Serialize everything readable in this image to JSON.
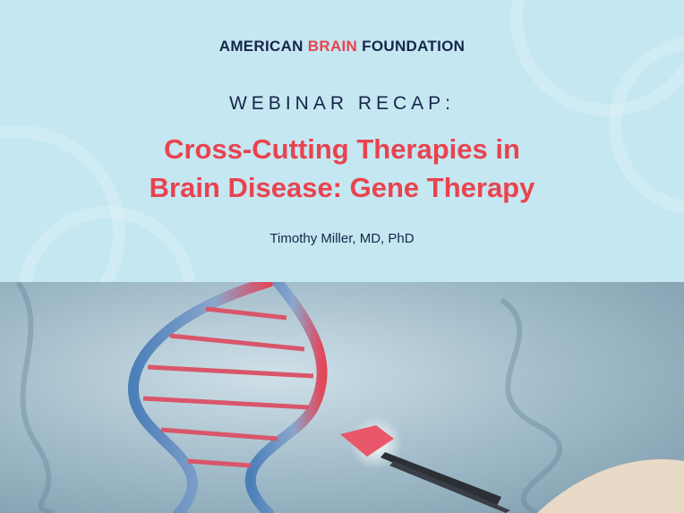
{
  "header": {
    "org_part1": "AMERICAN",
    "org_part2": "BRAIN",
    "org_part3": "FOUNDATION"
  },
  "kicker": "WEBINAR RECAP:",
  "title_line1": "Cross-Cutting Therapies in",
  "title_line2": "Brain Disease: Gene Therapy",
  "author": "Timothy Miller, MD, PhD",
  "colors": {
    "background": "#c5e7f1",
    "navy": "#16264a",
    "accent": "#e8434f"
  }
}
